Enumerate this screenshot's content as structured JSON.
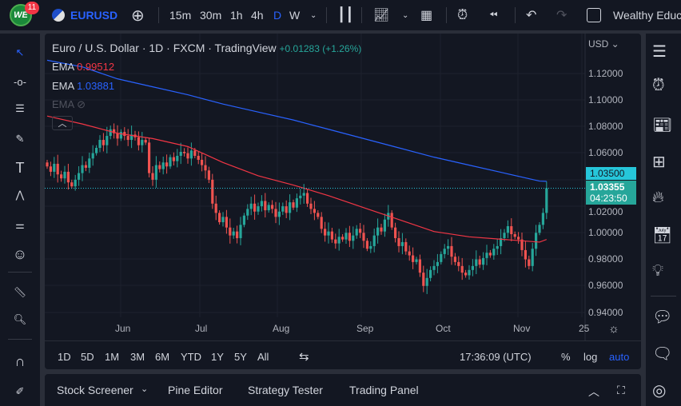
{
  "toolbar": {
    "notif_count": "11",
    "symbol": "EURUSD",
    "intervals": [
      "15m",
      "30m",
      "1h",
      "4h",
      "D",
      "W"
    ],
    "active_interval": "D",
    "layout_name": "Wealthy Educ"
  },
  "legend": {
    "title": "Euro / U.S. Dollar · 1D · FXCM · TradingView",
    "change": "+0.01283 (+1.26%)",
    "ema1_label": "EMA",
    "ema1_value": "0.99512",
    "ema2_label": "EMA",
    "ema2_value": "1.03881",
    "ema3_label": "EMA"
  },
  "price_scale": {
    "currency": "USD",
    "ticks": [
      "1.12000",
      "1.10000",
      "1.08000",
      "1.06000",
      "1.02000",
      "1.00000",
      "0.98000",
      "0.96000",
      "0.94000"
    ],
    "ema_tag": "1.03500",
    "price_tag": "1.03355",
    "countdown": "04:23:50"
  },
  "time_scale": {
    "ticks": [
      "Jun",
      "Jul",
      "Aug",
      "Sep",
      "Oct",
      "Nov",
      "25"
    ]
  },
  "ranges": [
    "1D",
    "5D",
    "1M",
    "3M",
    "6M",
    "YTD",
    "1Y",
    "5Y",
    "All"
  ],
  "clock": "17:36:09 (UTC)",
  "scale_opts": {
    "pct": "%",
    "log": "log",
    "auto": "auto"
  },
  "bottom_tabs": [
    "Stock Screener",
    "Pine Editor",
    "Strategy Tester",
    "Trading Panel"
  ],
  "colors": {
    "up": "#26a69a",
    "down": "#ef5350",
    "ema_fast": "#f23645",
    "ema_slow": "#2962ff",
    "accent": "#2962ff",
    "price_line": "#26c6da"
  },
  "chart_data": {
    "type": "candlestick",
    "ylim": [
      0.93,
      1.135
    ],
    "closes": [
      1.05,
      1.046,
      1.052,
      1.044,
      1.041,
      1.046,
      1.038,
      1.035,
      1.04,
      1.045,
      1.051,
      1.049,
      1.056,
      1.06,
      1.064,
      1.07,
      1.066,
      1.073,
      1.078,
      1.075,
      1.071,
      1.076,
      1.073,
      1.07,
      1.074,
      1.072,
      1.066,
      1.07,
      1.068,
      1.045,
      1.04,
      1.051,
      1.048,
      1.053,
      1.05,
      1.057,
      1.054,
      1.058,
      1.061,
      1.06,
      1.056,
      1.062,
      1.058,
      1.055,
      1.051,
      1.047,
      1.04,
      1.022,
      1.015,
      1.008,
      1.012,
      1.004,
      0.998,
      1.001,
      0.996,
      1.006,
      1.013,
      1.018,
      1.022,
      1.016,
      1.02,
      1.024,
      1.017,
      1.021,
      1.018,
      1.012,
      1.016,
      1.02,
      1.015,
      1.023,
      1.019,
      1.026,
      1.028,
      1.03,
      1.022,
      1.018,
      1.015,
      1.012,
      1.003,
      0.998,
      1.001,
      0.995,
      0.992,
      0.997,
      0.995,
      1.0,
      0.994,
      0.998,
      1.003,
      1.0,
      0.994,
      0.988,
      0.99,
      0.998,
      1.004,
      1.001,
      1.01,
      1.015,
      1.004,
      0.996,
      0.99,
      0.993,
      0.986,
      0.983,
      0.978,
      0.98,
      0.97,
      0.96,
      0.966,
      0.972,
      0.975,
      0.978,
      0.984,
      0.988,
      0.99,
      0.982,
      0.978,
      0.975,
      0.97,
      0.968,
      0.972,
      0.975,
      0.98,
      0.976,
      0.981,
      0.985,
      0.983,
      0.988,
      0.99,
      0.996,
      1.0,
      1.005,
      0.999,
      0.997,
      0.995,
      0.987,
      0.98,
      0.975,
      0.988,
      1.0,
      1.006,
      1.015,
      1.0336
    ],
    "ema_fast": [
      1.088,
      1.082,
      1.075,
      1.071,
      1.065,
      1.053,
      1.043,
      1.036,
      1.028,
      1.019,
      1.01,
      1.001,
      0.997,
      0.995,
      0.993,
      0.995
    ],
    "ema_slow": [
      1.13,
      1.125,
      1.116,
      1.11,
      1.104,
      1.097,
      1.091,
      1.085,
      1.078,
      1.071,
      1.064,
      1.057,
      1.051,
      1.045,
      1.039,
      1.0388
    ]
  }
}
